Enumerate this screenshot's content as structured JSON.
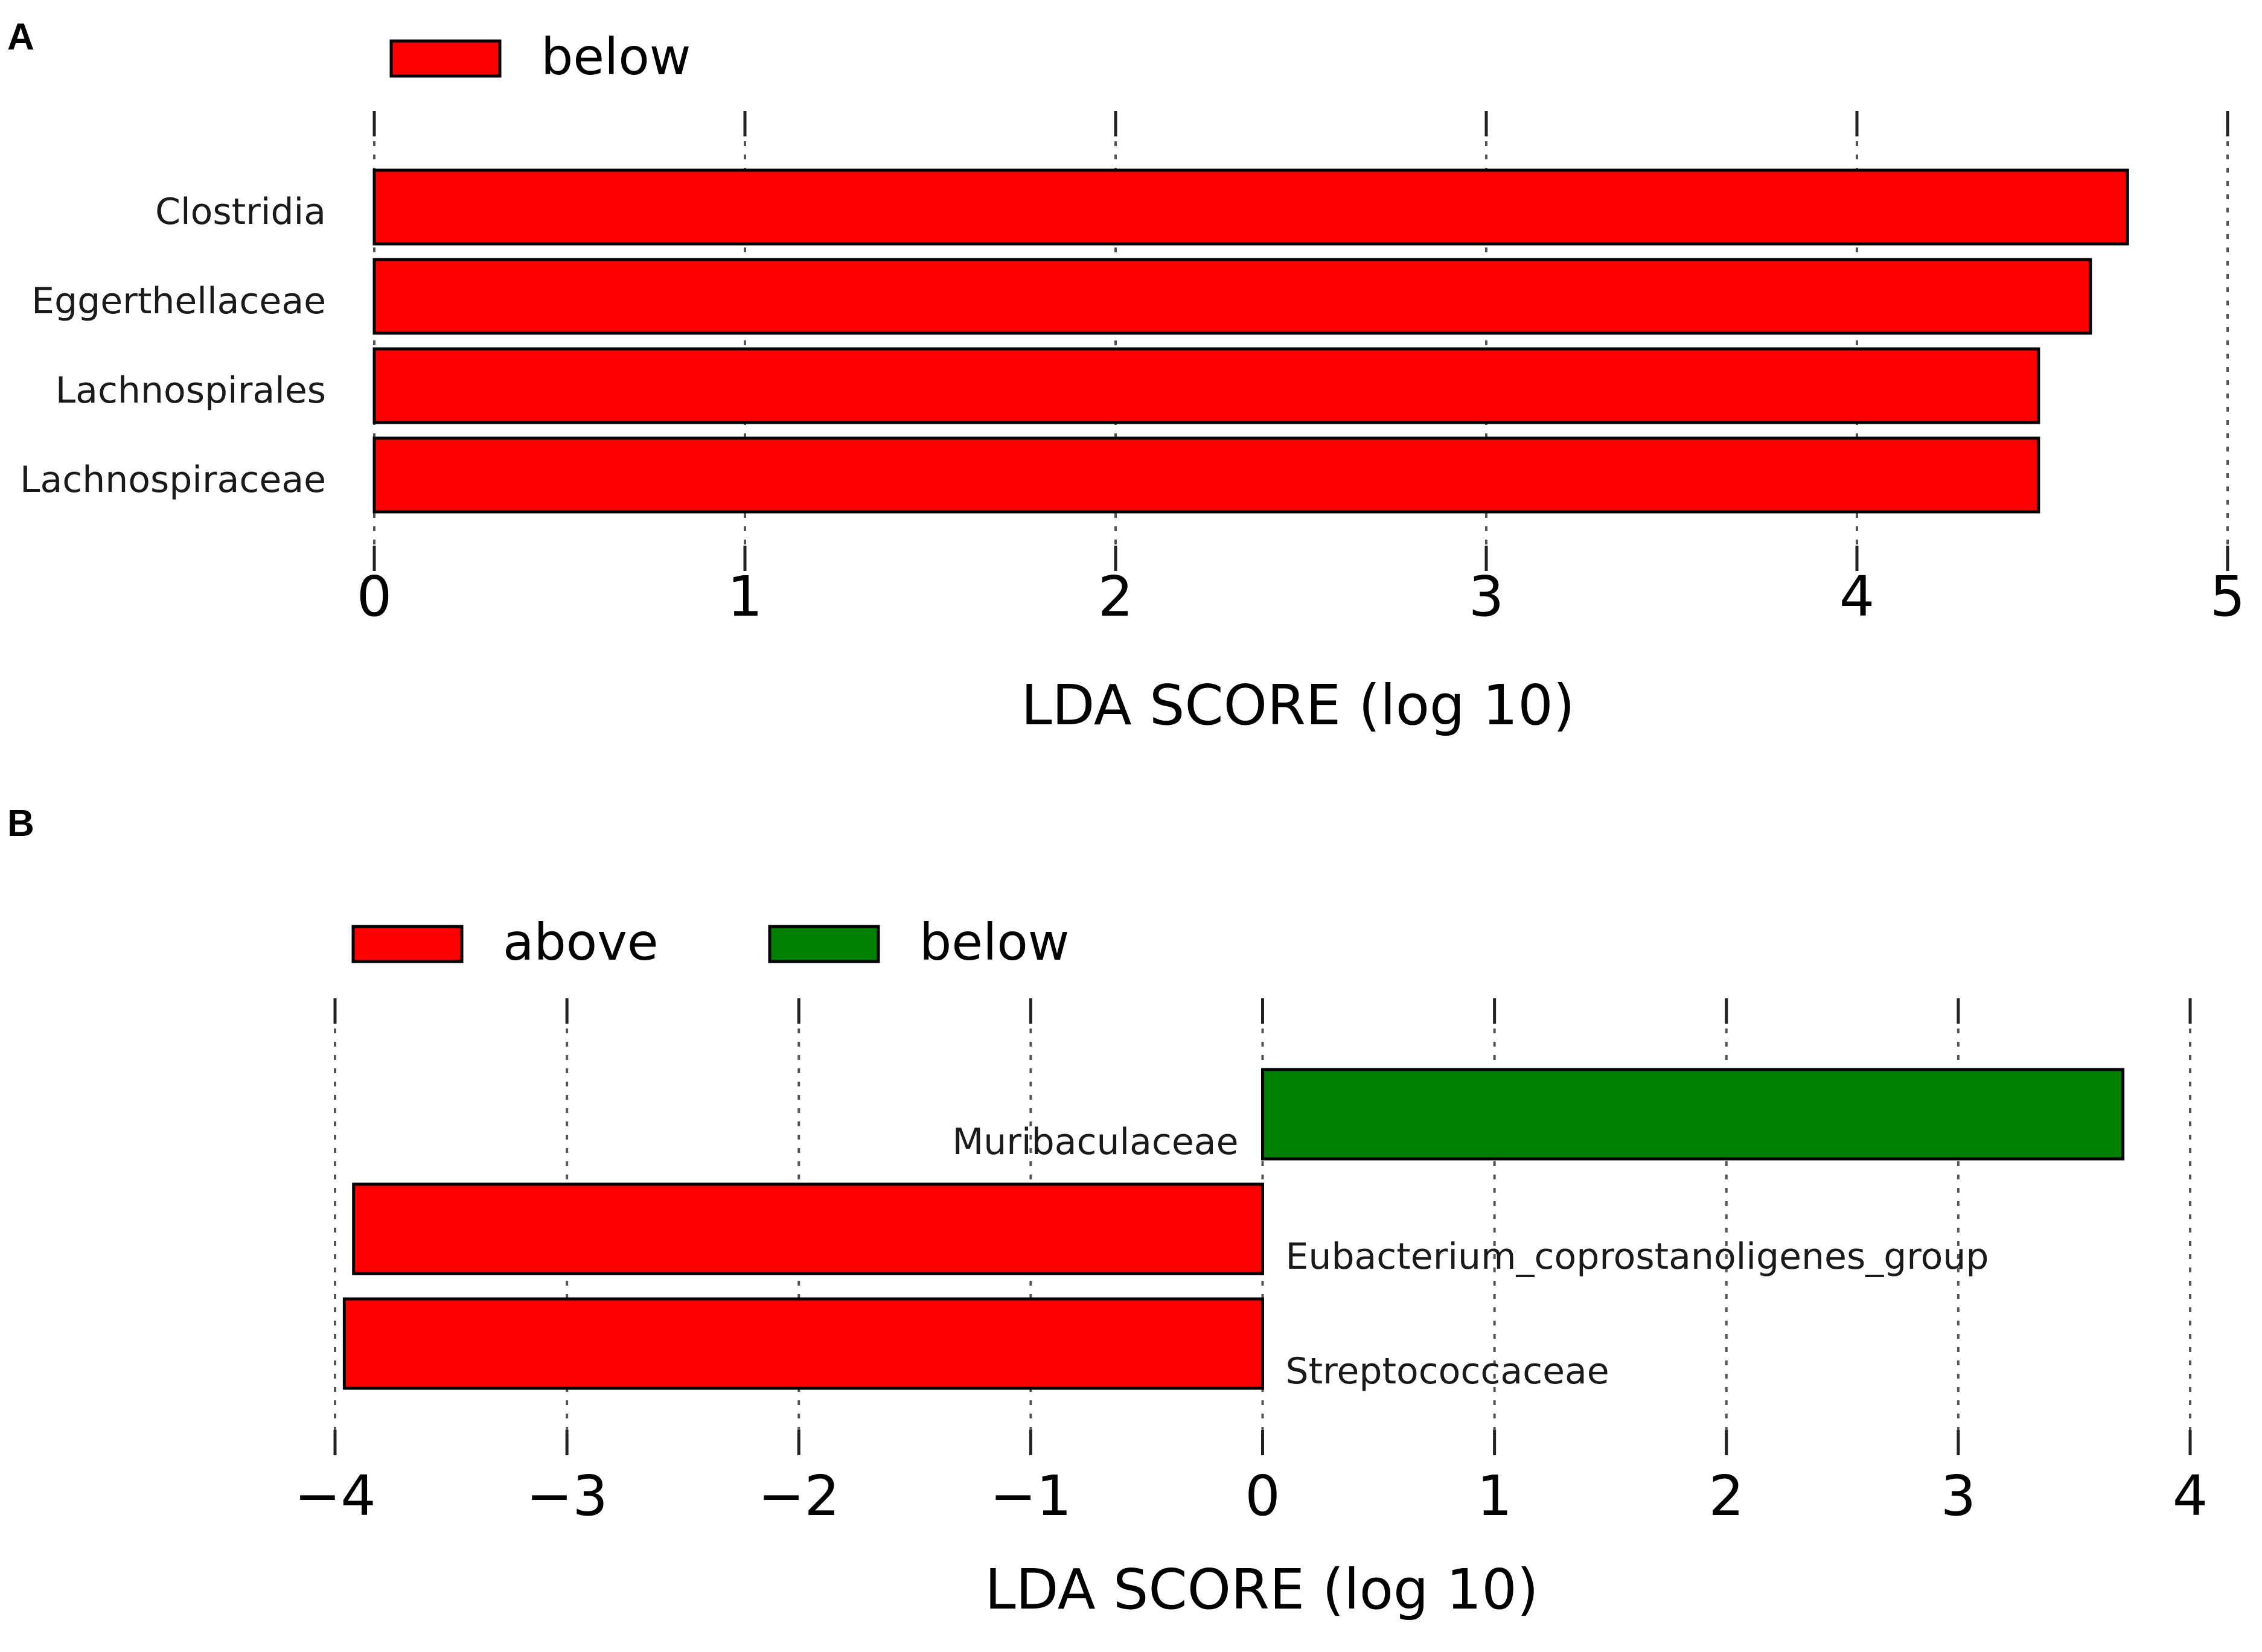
{
  "chart_data": [
    {
      "panel": "A",
      "type": "bar",
      "orientation": "horizontal",
      "legend": [
        {
          "label": "below",
          "color": "#ff0000"
        }
      ],
      "legend_position": "top-left",
      "categories": [
        "Clostridia",
        "Eggerthellaceae",
        "Lachnospirales",
        "Lachnospiraceae"
      ],
      "values": [
        4.73,
        4.63,
        4.49,
        4.49
      ],
      "colors": [
        "#ff0000",
        "#ff0000",
        "#ff0000",
        "#ff0000"
      ],
      "label_side": [
        "left",
        "left",
        "left",
        "left"
      ],
      "xlim": [
        0,
        5
      ],
      "xticks": [
        0,
        1,
        2,
        3,
        4,
        5
      ],
      "xtick_labels": [
        "0",
        "1",
        "2",
        "3",
        "4",
        "5"
      ],
      "xlabel": "LDA SCORE (log 10)",
      "grid": true
    },
    {
      "panel": "B",
      "type": "bar",
      "orientation": "horizontal",
      "legend": [
        {
          "label": "above",
          "color": "#ff0000"
        },
        {
          "label": "below",
          "color": "#008000"
        }
      ],
      "legend_position": "top-left",
      "categories": [
        "Muribaculaceae",
        "Eubacterium_coprostanoligenes_group",
        "Streptococcaceae"
      ],
      "values": [
        3.71,
        -3.92,
        -3.96
      ],
      "colors": [
        "#008000",
        "#ff0000",
        "#ff0000"
      ],
      "label_side": [
        "left",
        "right",
        "right"
      ],
      "xlim": [
        -4,
        4
      ],
      "xticks": [
        -4,
        -3,
        -2,
        -1,
        0,
        1,
        2,
        3,
        4
      ],
      "xtick_labels": [
        "−4",
        "−3",
        "−2",
        "−1",
        "0",
        "1",
        "2",
        "3",
        "4"
      ],
      "xlabel": "LDA SCORE (log 10)",
      "grid": true
    }
  ]
}
